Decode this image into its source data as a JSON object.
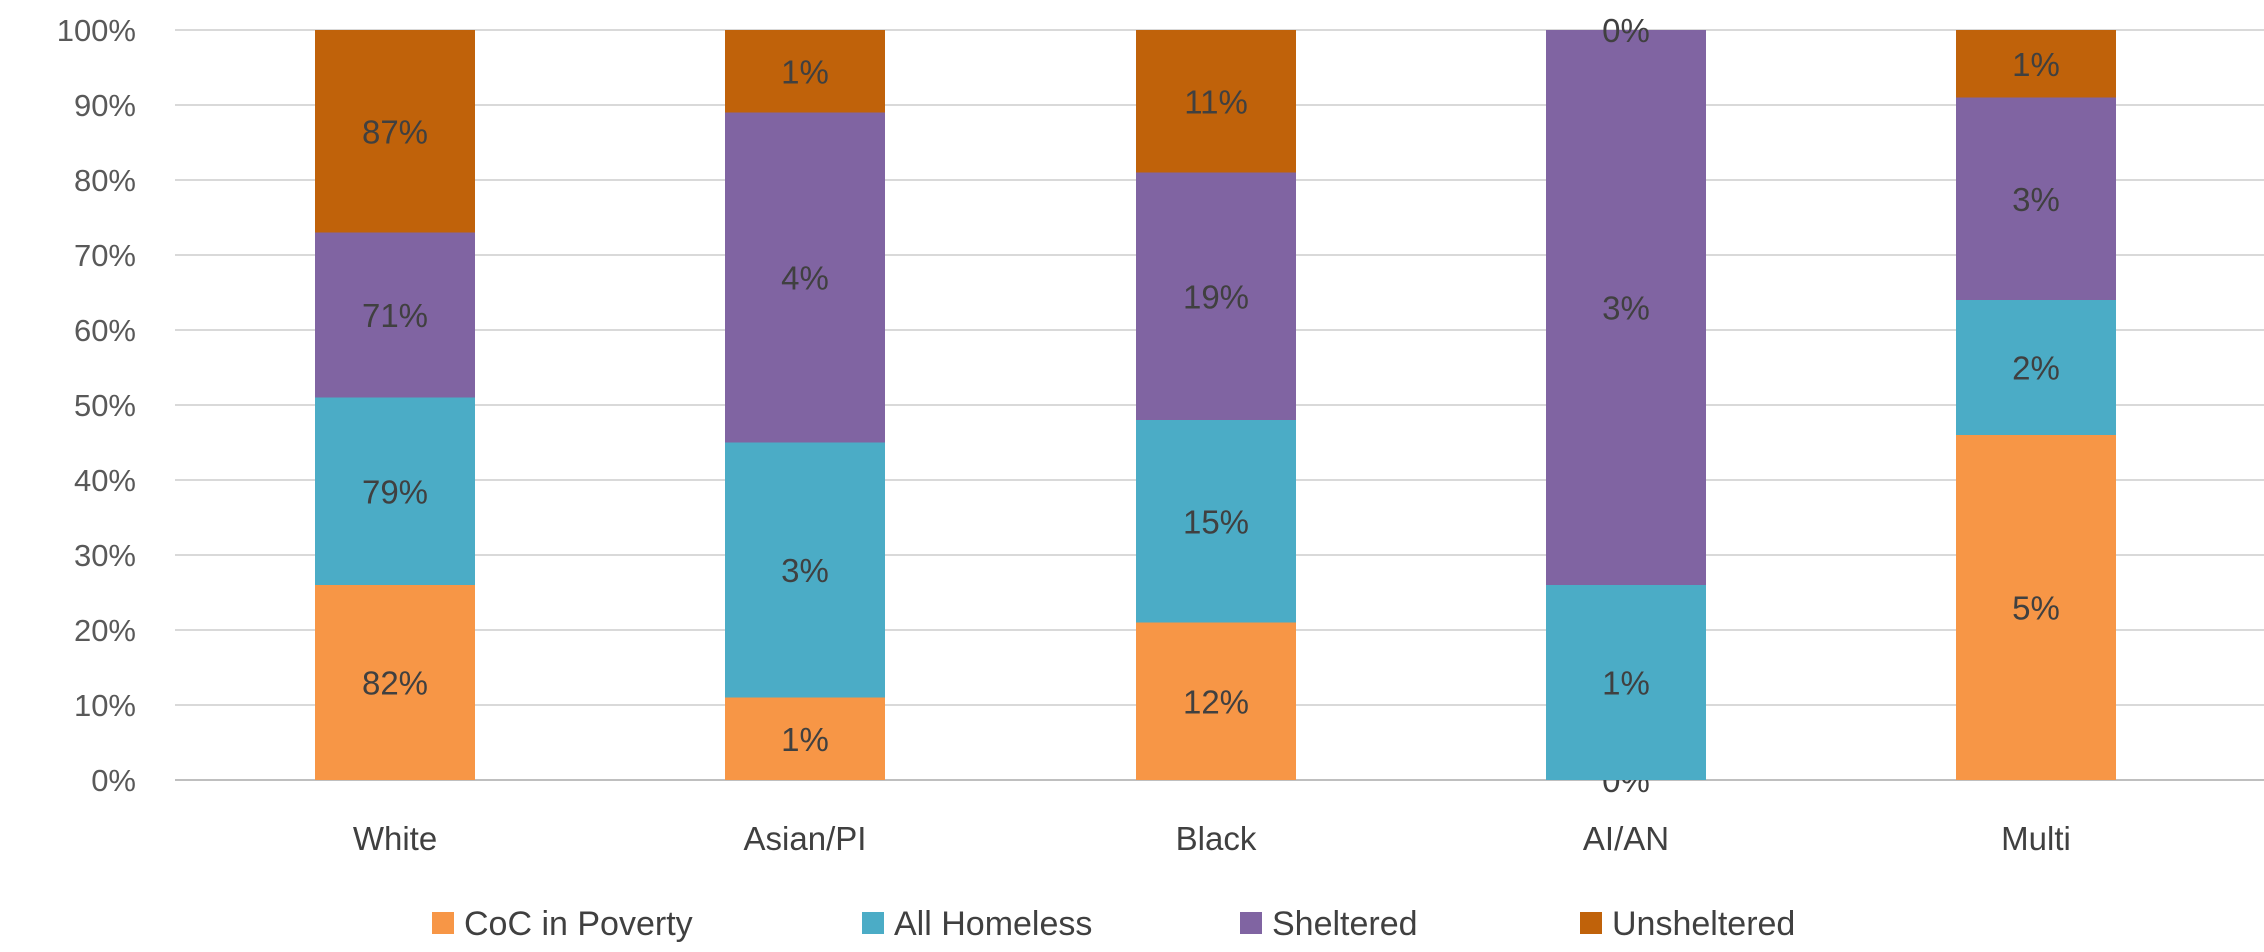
{
  "chart_data": {
    "type": "bar",
    "stacked": true,
    "categories": [
      "White",
      "Asian/PI",
      "Black",
      "AI/AN",
      "Multi"
    ],
    "series": [
      {
        "name": "CoC in Poverty",
        "color": "#F79646",
        "values": [
          26,
          11,
          21,
          0,
          46
        ],
        "labels": [
          "82%",
          "1%",
          "12%",
          "0%",
          "5%"
        ]
      },
      {
        "name": "All Homeless",
        "color": "#4BACC6",
        "values": [
          25,
          34,
          27,
          26,
          18
        ],
        "labels": [
          "79%",
          "3%",
          "15%",
          "1%",
          "2%"
        ]
      },
      {
        "name": "Sheltered",
        "color": "#8064A2",
        "values": [
          22,
          44,
          33,
          74,
          27
        ],
        "labels": [
          "71%",
          "4%",
          "19%",
          "3%",
          "3%"
        ]
      },
      {
        "name": "Unsheltered",
        "color": "#C0620A",
        "values": [
          27,
          11,
          19,
          0,
          9
        ],
        "labels": [
          "87%",
          "1%",
          "11%",
          "0%",
          "1%"
        ]
      }
    ],
    "yticks": [
      "0%",
      "10%",
      "20%",
      "30%",
      "40%",
      "50%",
      "60%",
      "70%",
      "80%",
      "90%",
      "100%"
    ],
    "ylim": [
      0,
      100
    ],
    "grid": true,
    "legend": "bottom"
  }
}
